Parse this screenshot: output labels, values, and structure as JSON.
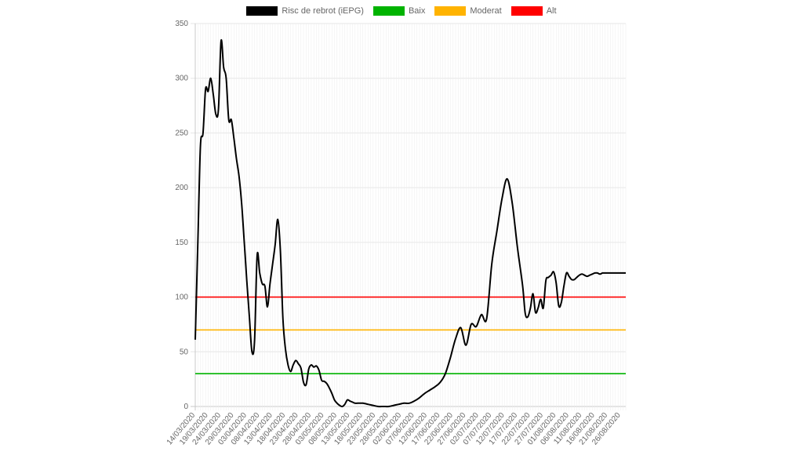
{
  "chart_data": {
    "type": "line",
    "title": "",
    "xlabel": "",
    "ylabel": "",
    "ylim": [
      0,
      350
    ],
    "y_ticks": [
      0,
      50,
      100,
      150,
      200,
      250,
      300,
      350
    ],
    "grid": true,
    "legend_position": "top-center",
    "x_tick_labels": [
      "14/03/2020",
      "19/03/2020",
      "24/03/2020",
      "29/03/2020",
      "03/04/2020",
      "08/04/2020",
      "13/04/2020",
      "18/04/2020",
      "23/04/2020",
      "28/04/2020",
      "03/05/2020",
      "08/05/2020",
      "13/05/2020",
      "18/05/2020",
      "23/05/2020",
      "28/05/2020",
      "02/06/2020",
      "07/06/2020",
      "12/06/2020",
      "17/06/2020",
      "22/06/2020",
      "27/06/2020",
      "02/07/2020",
      "07/07/2020",
      "12/07/2020",
      "17/07/2020",
      "22/07/2020",
      "27/07/2020",
      "01/08/2020",
      "06/08/2020",
      "11/08/2020",
      "16/08/2020",
      "21/08/2020",
      "26/08/2020"
    ],
    "x_start": "2020-03-14",
    "x_end": "2020-08-28",
    "series": [
      {
        "name": "Risc de rebrot (iEPG)",
        "color": "#000000",
        "x": [
          "2020-03-14",
          "2020-03-15",
          "2020-03-16",
          "2020-03-17",
          "2020-03-18",
          "2020-03-19",
          "2020-03-20",
          "2020-03-21",
          "2020-03-22",
          "2020-03-23",
          "2020-03-24",
          "2020-03-25",
          "2020-03-26",
          "2020-03-27",
          "2020-03-28",
          "2020-03-29",
          "2020-03-30",
          "2020-03-31",
          "2020-04-01",
          "2020-04-02",
          "2020-04-03",
          "2020-04-04",
          "2020-04-05",
          "2020-04-06",
          "2020-04-07",
          "2020-04-08",
          "2020-04-09",
          "2020-04-10",
          "2020-04-11",
          "2020-04-12",
          "2020-04-13",
          "2020-04-14",
          "2020-04-15",
          "2020-04-16",
          "2020-04-17",
          "2020-04-18",
          "2020-04-19",
          "2020-04-20",
          "2020-04-21",
          "2020-04-22",
          "2020-04-23",
          "2020-04-24",
          "2020-04-25",
          "2020-04-26",
          "2020-04-27",
          "2020-04-28",
          "2020-04-29",
          "2020-04-30",
          "2020-05-01",
          "2020-05-02",
          "2020-05-03",
          "2020-05-04",
          "2020-05-05",
          "2020-05-06",
          "2020-05-07",
          "2020-05-08",
          "2020-05-09",
          "2020-05-10",
          "2020-05-11",
          "2020-05-12",
          "2020-05-13",
          "2020-05-14",
          "2020-05-15",
          "2020-05-16",
          "2020-05-17",
          "2020-05-18",
          "2020-05-20",
          "2020-05-22",
          "2020-05-24",
          "2020-05-26",
          "2020-05-28",
          "2020-05-30",
          "2020-06-01",
          "2020-06-03",
          "2020-06-05",
          "2020-06-07",
          "2020-06-09",
          "2020-06-11",
          "2020-06-13",
          "2020-06-15",
          "2020-06-17",
          "2020-06-19",
          "2020-06-21",
          "2020-06-23",
          "2020-06-25",
          "2020-06-27",
          "2020-06-29",
          "2020-07-01",
          "2020-07-03",
          "2020-07-05",
          "2020-07-07",
          "2020-07-09",
          "2020-07-11",
          "2020-07-13",
          "2020-07-15",
          "2020-07-17",
          "2020-07-19",
          "2020-07-20",
          "2020-07-21",
          "2020-07-22",
          "2020-07-23",
          "2020-07-24",
          "2020-07-25",
          "2020-07-26",
          "2020-07-27",
          "2020-07-28",
          "2020-07-29",
          "2020-07-30",
          "2020-07-31",
          "2020-08-01",
          "2020-08-02",
          "2020-08-03",
          "2020-08-04",
          "2020-08-05",
          "2020-08-06",
          "2020-08-07",
          "2020-08-08",
          "2020-08-09",
          "2020-08-10",
          "2020-08-11",
          "2020-08-12",
          "2020-08-13",
          "2020-08-14",
          "2020-08-15",
          "2020-08-16",
          "2020-08-17",
          "2020-08-18",
          "2020-08-19",
          "2020-08-20",
          "2020-08-21",
          "2020-08-22",
          "2020-08-23",
          "2020-08-24",
          "2020-08-25",
          "2020-08-26",
          "2020-08-27",
          "2020-08-28"
        ],
        "values": [
          61,
          150,
          238,
          250,
          290,
          288,
          300,
          285,
          267,
          272,
          334,
          310,
          300,
          262,
          262,
          245,
          226,
          210,
          185,
          150,
          115,
          82,
          50,
          60,
          138,
          122,
          112,
          110,
          91,
          112,
          130,
          148,
          171,
          143,
          80,
          52,
          38,
          32,
          38,
          42,
          39,
          35,
          22,
          20,
          34,
          38,
          36,
          37,
          33,
          24,
          23,
          21,
          17,
          12,
          6,
          3,
          1,
          0,
          2,
          6,
          5,
          4,
          3,
          3,
          3,
          3,
          2,
          1,
          0,
          0,
          0,
          1,
          2,
          3,
          3,
          5,
          8,
          12,
          15,
          18,
          22,
          30,
          45,
          62,
          72,
          56,
          75,
          73,
          84,
          80,
          130,
          160,
          190,
          208,
          185,
          145,
          110,
          85,
          82,
          90,
          103,
          86,
          90,
          98,
          90,
          115,
          118,
          120,
          123,
          113,
          92,
          95,
          110,
          122,
          119,
          116,
          116,
          118,
          120,
          121,
          120,
          119,
          120,
          121,
          122,
          122,
          121,
          122,
          122,
          122,
          122,
          122,
          122,
          122,
          122,
          122,
          122
        ]
      },
      {
        "name": "Baix",
        "color": "#00b300",
        "constant": 30
      },
      {
        "name": "Moderat",
        "color": "#ffb300",
        "constant": 70
      },
      {
        "name": "Alt",
        "color": "#ff0000",
        "constant": 100
      }
    ]
  }
}
